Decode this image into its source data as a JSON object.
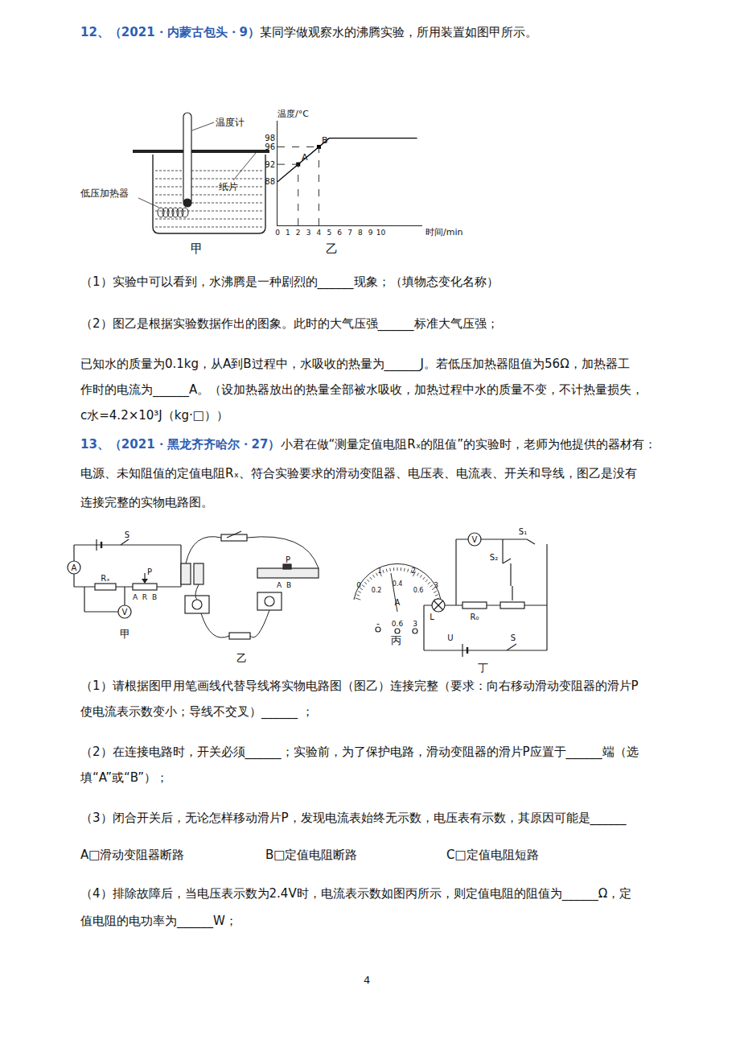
{
  "document": {
    "q12": {
      "source": "12、（2021・内蒙古包头・9）",
      "stem": "某同学做观察水的沸腾实验，所用装置如图甲所示。",
      "apparatus_labels": [
        "温度计",
        "纸片",
        "低压加热器"
      ],
      "apparatus_caption": "甲",
      "graph_caption": "乙",
      "lines": [
        "（1）实验中可以看到，水沸腾是一种剧烈的______现象；（填物态变化名称）",
        "（2）图乙是根据实验数据作出的图象。此时的大气压强______标准大气压强；",
        "已知水的质量为0.1kg，从A到B过程中，水吸收的热量为______J。若低压加热器阻值为56Ω，加热器工",
        "作时的电流为______A。（设加热器放出的热量全部被水吸收，加热过程中水的质量不变，不计热量损失，",
        "c水=4.2×10³J（kg·□））"
      ]
    },
    "q13": {
      "source": "13、（2021・黑龙齐齐哈尔・27）",
      "stem_lines": [
        "小君在做“测量定值电阻Rₓ的阻值”的实验时，老师为他提供的器材有：",
        "电源、未知阻值的定值电阻Rₓ、符合实验要求的滑动变阻器、电压表、电流表、开关和导线，图乙是没有",
        "连接完整的实物电路图。"
      ],
      "figure_jia": {
        "labels": [
          "S",
          "A",
          "Rₓ",
          "P",
          "A",
          "R",
          "B",
          "V"
        ],
        "caption": "甲"
      },
      "figure_yi": {
        "labels": [
          "P",
          "A",
          "B"
        ],
        "caption": "乙"
      },
      "figure_bing": {
        "labels": [
          "0",
          "1",
          "2",
          "3",
          "0.2",
          "0.4",
          "0.6",
          "A",
          "-",
          "0.6",
          "3"
        ],
        "caption": "丙"
      },
      "figure_ding": {
        "labels": [
          "V",
          "S₁",
          "S₂",
          "L",
          "R₀",
          "U",
          "S"
        ],
        "caption": "丁"
      },
      "lines": [
        "（1）请根据图甲用笔画线代替导线将实物电路图（图乙）连接完整（要求：向右移动滑动变阻器的滑片P",
        "使电流表示数变小；导线不交叉）______ ；",
        "（2）在连接电路时，开关必须______；实验前，为了保护电路，滑动变阻器的滑片P应置于______端（选",
        "填“A”或“B”）；",
        "（3）闭合开关后，无论怎样移动滑片P，发现电流表始终无示数，电压表有示数，其原因可能是______"
      ],
      "options": [
        "A□滑动变阻器断路",
        "B□定值电阻断路",
        "C□定值电阻短路"
      ],
      "lines_after": [
        "（4）排除故障后，当电压表示数为2.4V时，电流表示数如图丙所示，则定值电阻的阻值为______Ω，定",
        "值电阻的电功率为______W；"
      ]
    },
    "page_number": "4"
  },
  "chart_data": {
    "type": "line",
    "x_label": "时间/min",
    "y_label": "温度/°C",
    "x": [
      0,
      5,
      13.5
    ],
    "values": [
      88,
      98,
      98
    ],
    "color": "#000000",
    "xlim": [
      0,
      14
    ],
    "xticks": [
      0,
      1,
      2,
      3,
      4,
      5,
      6,
      7,
      8,
      9,
      10
    ],
    "ylim": [
      78,
      102
    ],
    "yticks": [
      88,
      92,
      96,
      98
    ],
    "grid": false,
    "annotations": [
      {
        "text": "A",
        "x": 2,
        "y": 92
      },
      {
        "text": "B",
        "x": 4,
        "y": 96
      }
    ]
  }
}
